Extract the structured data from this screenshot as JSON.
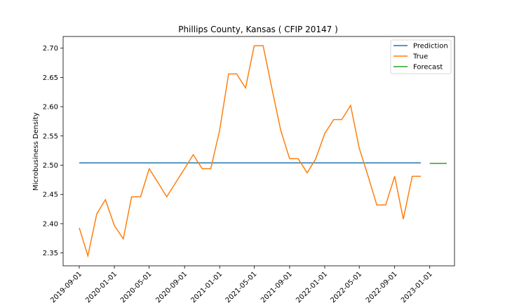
{
  "chart_data": {
    "type": "line",
    "title": "Phillips County, Kansas ( CFIP 20147 )",
    "ylabel": "Microbusiness Density",
    "xlabel": "",
    "ylim": [
      2.328,
      2.72
    ],
    "xlim": [
      "2019-07-07",
      "2023-03-28"
    ],
    "yticks": [
      2.35,
      2.4,
      2.45,
      2.5,
      2.55,
      2.6,
      2.65,
      2.7
    ],
    "xticks": [
      "2019-09-01",
      "2020-01-01",
      "2020-05-01",
      "2020-09-01",
      "2021-01-01",
      "2021-05-01",
      "2021-09-01",
      "2022-01-01",
      "2022-05-01",
      "2022-09-01",
      "2023-01-01"
    ],
    "legend_position": "top-right",
    "grid": false,
    "series": [
      {
        "name": "Prediction",
        "color": "#1f77b4",
        "points": [
          [
            "2019-09-01",
            2.504
          ],
          [
            "2022-12-01",
            2.504
          ]
        ]
      },
      {
        "name": "True",
        "color": "#ff7f0e",
        "points": [
          [
            "2019-09-01",
            2.393
          ],
          [
            "2019-10-01",
            2.345
          ],
          [
            "2019-11-01",
            2.417
          ],
          [
            "2019-12-01",
            2.441
          ],
          [
            "2020-01-01",
            2.397
          ],
          [
            "2020-02-01",
            2.374
          ],
          [
            "2020-03-01",
            2.446
          ],
          [
            "2020-04-01",
            2.446
          ],
          [
            "2020-05-01",
            2.494
          ],
          [
            "2020-06-01",
            2.47
          ],
          [
            "2020-07-01",
            2.446
          ],
          [
            "2020-08-01",
            2.47
          ],
          [
            "2020-09-01",
            2.494
          ],
          [
            "2020-10-01",
            2.518
          ],
          [
            "2020-11-01",
            2.494
          ],
          [
            "2020-12-01",
            2.494
          ],
          [
            "2021-01-01",
            2.56
          ],
          [
            "2021-02-01",
            2.656
          ],
          [
            "2021-03-01",
            2.656
          ],
          [
            "2021-04-01",
            2.632
          ],
          [
            "2021-05-01",
            2.704
          ],
          [
            "2021-06-01",
            2.704
          ],
          [
            "2021-07-01",
            2.632
          ],
          [
            "2021-08-01",
            2.56
          ],
          [
            "2021-09-01",
            2.511
          ],
          [
            "2021-10-01",
            2.511
          ],
          [
            "2021-11-01",
            2.487
          ],
          [
            "2021-12-01",
            2.511
          ],
          [
            "2022-01-01",
            2.554
          ],
          [
            "2022-02-01",
            2.578
          ],
          [
            "2022-03-01",
            2.578
          ],
          [
            "2022-04-01",
            2.602
          ],
          [
            "2022-05-01",
            2.529
          ],
          [
            "2022-06-01",
            2.481
          ],
          [
            "2022-07-01",
            2.432
          ],
          [
            "2022-08-01",
            2.432
          ],
          [
            "2022-09-01",
            2.481
          ],
          [
            "2022-10-01",
            2.408
          ],
          [
            "2022-11-01",
            2.481
          ],
          [
            "2022-12-01",
            2.481
          ]
        ]
      },
      {
        "name": "Forecast",
        "color": "#2ca02c",
        "points": [
          [
            "2023-01-01",
            2.503
          ],
          [
            "2023-03-01",
            2.503
          ]
        ]
      }
    ]
  }
}
